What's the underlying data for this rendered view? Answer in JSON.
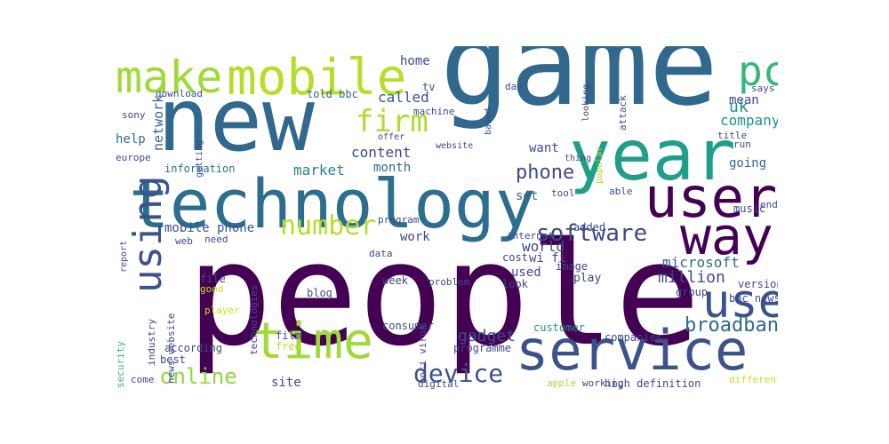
{
  "colors": {
    "background": "#ffffff",
    "palette": [
      "#440154",
      "#3b528b",
      "#21918c",
      "#5ec962",
      "#fde725"
    ]
  },
  "words": [
    {
      "text": "people",
      "color": "#440154"
    },
    {
      "text": "game",
      "color": "#31688e"
    },
    {
      "text": "new",
      "color": "#31688e"
    },
    {
      "text": "technology",
      "color": "#2c6e8e"
    },
    {
      "text": "year",
      "color": "#1f9e89"
    },
    {
      "text": "service",
      "color": "#3b528b"
    },
    {
      "text": "time",
      "color": "#a0da39"
    },
    {
      "text": "user",
      "color": "#440154"
    },
    {
      "text": "mobile",
      "color": "#b5de2b"
    },
    {
      "text": "make",
      "color": "#a0da39"
    },
    {
      "text": "way",
      "color": "#440154"
    },
    {
      "text": "use",
      "color": "#3b528b"
    },
    {
      "text": "pc",
      "color": "#35b779"
    },
    {
      "text": "using",
      "color": "#3b528b"
    },
    {
      "text": "device",
      "color": "#3b528b"
    },
    {
      "text": "firm",
      "color": "#addc30"
    },
    {
      "text": "number",
      "color": "#b5de2b"
    },
    {
      "text": "software",
      "color": "#3e4a89"
    },
    {
      "text": "broadband",
      "color": "#31688e"
    },
    {
      "text": "online",
      "color": "#90d743"
    },
    {
      "text": "phone",
      "color": "#3e4a89"
    },
    {
      "text": "microsoft",
      "color": "#31688e"
    },
    {
      "text": "million",
      "color": "#3e4a89"
    },
    {
      "text": "mobile phone",
      "color": "#3b528b"
    },
    {
      "text": "market",
      "color": "#26828e"
    },
    {
      "text": "content",
      "color": "#3e4a89"
    },
    {
      "text": "uk",
      "color": "#21918c"
    },
    {
      "text": "company",
      "color": "#21918c"
    },
    {
      "text": "mean",
      "color": "#3e4a89"
    },
    {
      "text": "network",
      "color": "#31688e"
    },
    {
      "text": "home",
      "color": "#3e4a89"
    },
    {
      "text": "called",
      "color": "#3b528b"
    },
    {
      "text": "tv",
      "color": "#3e4a89"
    },
    {
      "text": "told bbc",
      "color": "#31688e"
    },
    {
      "text": "help",
      "color": "#2c728e"
    },
    {
      "text": "want",
      "color": "#3e4a89"
    },
    {
      "text": "going",
      "color": "#31688e"
    },
    {
      "text": "month",
      "color": "#31688e"
    },
    {
      "text": "gadget",
      "color": "#3e4a89"
    },
    {
      "text": "world",
      "color": "#3e4a89"
    },
    {
      "text": "used",
      "color": "#3e4a89"
    },
    {
      "text": "work",
      "color": "#3e4a89"
    },
    {
      "text": "information",
      "color": "#2c728e"
    },
    {
      "text": "set",
      "color": "#31688e"
    },
    {
      "text": "site",
      "color": "#3e4a89"
    },
    {
      "text": "bbc news",
      "color": "#3e4a89"
    },
    {
      "text": "wi fi",
      "color": "#3e4a89"
    },
    {
      "text": "play",
      "color": "#3e4a89"
    },
    {
      "text": "film",
      "color": "#3e4a89"
    },
    {
      "text": "file",
      "color": "#3e4a89"
    },
    {
      "text": "week",
      "color": "#3e4a89"
    },
    {
      "text": "look",
      "color": "#3e4a89"
    },
    {
      "text": "version",
      "color": "#3e4a89"
    },
    {
      "text": "group",
      "color": "#3e4a89"
    },
    {
      "text": "cost",
      "color": "#3e4a89"
    },
    {
      "text": "image",
      "color": "#3e4a89"
    },
    {
      "text": "customer",
      "color": "#21918c"
    },
    {
      "text": "companies",
      "color": "#3e4a89"
    },
    {
      "text": "programme",
      "color": "#3e4a89"
    },
    {
      "text": "according",
      "color": "#3e4a89"
    },
    {
      "text": "best",
      "color": "#3e4a89"
    },
    {
      "text": "high definition",
      "color": "#3e4a89"
    },
    {
      "text": "free",
      "color": "#b5de2b"
    },
    {
      "text": "industry",
      "color": "#3e4a89"
    },
    {
      "text": "technologies",
      "color": "#3e4a89"
    },
    {
      "text": "news website",
      "color": "#3e4a89"
    },
    {
      "text": "anti virus",
      "color": "#3e4a89"
    },
    {
      "text": "consumer",
      "color": "#3e4a89"
    },
    {
      "text": "digital",
      "color": "#3e4a89"
    },
    {
      "text": "music",
      "color": "#3e4a89"
    },
    {
      "text": "added",
      "color": "#3e4a89"
    },
    {
      "text": "internet",
      "color": "#3e4a89"
    },
    {
      "text": "data",
      "color": "#3e4a89"
    },
    {
      "text": "problem",
      "color": "#3e4a89"
    },
    {
      "text": "end",
      "color": "#3e4a89"
    },
    {
      "text": "says",
      "color": "#3e4a89"
    },
    {
      "text": "title",
      "color": "#3e4a89"
    },
    {
      "text": "run",
      "color": "#3e4a89"
    },
    {
      "text": "download",
      "color": "#3e4a89"
    },
    {
      "text": "sony",
      "color": "#3e4a89"
    },
    {
      "text": "europe",
      "color": "#3e4a89"
    },
    {
      "text": "report",
      "color": "#3e4a89"
    },
    {
      "text": "need",
      "color": "#3e4a89"
    },
    {
      "text": "web",
      "color": "#3e4a89"
    },
    {
      "text": "good",
      "color": "#c8e020"
    },
    {
      "text": "player",
      "color": "#c8e020"
    },
    {
      "text": "blog",
      "color": "#3e4a89"
    },
    {
      "text": "security",
      "color": "#35b779"
    },
    {
      "text": "come",
      "color": "#3e4a89"
    },
    {
      "text": "machine",
      "color": "#3e4a89"
    },
    {
      "text": "day",
      "color": "#3e4a89"
    },
    {
      "text": "attack",
      "color": "#3e4a89"
    },
    {
      "text": "looking",
      "color": "#3e4a89"
    },
    {
      "text": "based",
      "color": "#3e4a89"
    },
    {
      "text": "popular",
      "color": "#addc30"
    },
    {
      "text": "tool",
      "color": "#3e4a89"
    },
    {
      "text": "able",
      "color": "#3e4a89"
    },
    {
      "text": "thing",
      "color": "#3e4a89"
    },
    {
      "text": "website",
      "color": "#3e4a89"
    },
    {
      "text": "offer",
      "color": "#3e4a89"
    },
    {
      "text": "getting",
      "color": "#3e4a89"
    },
    {
      "text": "different",
      "color": "#c8e020"
    },
    {
      "text": "working",
      "color": "#3e4a89"
    },
    {
      "text": "apple",
      "color": "#addc30"
    },
    {
      "text": "program",
      "color": "#3e4a89"
    }
  ]
}
